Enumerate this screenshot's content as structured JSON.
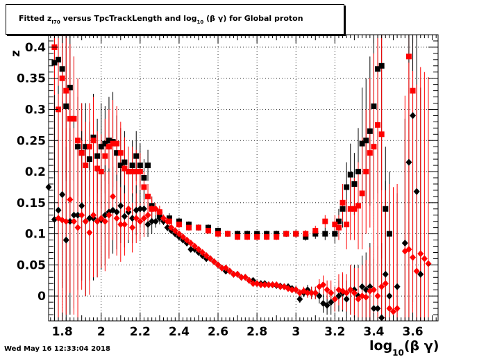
{
  "title": {
    "prefix": "Fitted  z",
    "sub1": "I70",
    "middle": "  versus TpcTrackLength and log",
    "sub2": "10",
    "suffix": " (β γ) for Global proton"
  },
  "datestamp": "Wed May 16 12:33:04 2018",
  "chart_data": {
    "type": "scatter",
    "title": "Fitted z_I70 versus TpcTrackLength and log10(β γ) for Global proton",
    "xlabel": "log10(β γ)",
    "ylabel": "z",
    "xlim": [
      1.73,
      3.73
    ],
    "ylim": [
      -0.04,
      0.42
    ],
    "grid": true,
    "x_ticks": [
      1.8,
      2.0,
      2.2,
      2.4,
      2.6,
      2.8,
      3.0,
      3.2,
      3.4,
      3.6
    ],
    "x_tick_labels": [
      "1.8",
      "2",
      "2.2",
      "2.4",
      "2.6",
      "2.8",
      "3",
      "3.2",
      "3.4",
      "3.6"
    ],
    "y_ticks": [
      0,
      0.05,
      0.1,
      0.15,
      0.2,
      0.25,
      0.3,
      0.35,
      0.4
    ],
    "y_tick_labels": [
      "0",
      "0.05",
      "0.1",
      "0.15",
      "0.2",
      "0.25",
      "0.3",
      "0.35",
      "0.4"
    ],
    "colors": {
      "black": "#000000",
      "red": "#ff0000"
    },
    "series": [
      {
        "marker": "square",
        "color": "#000000",
        "x": [
          1.76,
          1.78,
          1.8,
          1.82,
          1.84,
          1.86,
          1.88,
          1.9,
          1.92,
          1.94,
          1.96,
          1.98,
          2.0,
          2.02,
          2.04,
          2.06,
          2.08,
          2.1,
          2.12,
          2.14,
          2.16,
          2.18,
          2.2,
          2.22,
          2.24,
          2.26,
          2.3,
          2.35,
          2.4,
          2.45,
          2.5,
          2.55,
          2.6,
          2.65,
          2.7,
          2.75,
          2.8,
          2.85,
          2.9,
          2.95,
          3.0,
          3.05,
          3.1,
          3.15,
          3.2,
          3.22,
          3.24,
          3.26,
          3.28,
          3.3,
          3.32,
          3.34,
          3.36,
          3.38,
          3.4,
          3.42,
          3.44,
          3.46,
          3.48
        ],
        "y": [
          0.375,
          0.38,
          0.365,
          0.305,
          0.335,
          0.285,
          0.24,
          0.23,
          0.24,
          0.22,
          0.255,
          0.225,
          0.24,
          0.245,
          0.25,
          0.248,
          0.23,
          0.21,
          0.215,
          0.2,
          0.21,
          0.225,
          0.21,
          0.19,
          0.21,
          0.145,
          0.13,
          0.125,
          0.12,
          0.115,
          0.11,
          0.11,
          0.105,
          0.1,
          0.1,
          0.1,
          0.1,
          0.1,
          0.1,
          0.1,
          0.1,
          0.095,
          0.1,
          0.1,
          0.1,
          0.12,
          0.14,
          0.175,
          0.195,
          0.18,
          0.2,
          0.245,
          0.25,
          0.265,
          0.305,
          0.365,
          0.37,
          0.14,
          0.1
        ],
        "err": [
          0.18,
          0.2,
          0.2,
          0.12,
          0.12,
          0.1,
          0.08,
          0.08,
          0.07,
          0.06,
          0.07,
          0.06,
          0.07,
          0.06,
          0.07,
          0.08,
          0.06,
          0.06,
          0.05,
          0.04,
          0.04,
          0.04,
          0.035,
          0.03,
          0.025,
          0.015,
          0.01,
          0.008,
          0.006,
          0.005,
          0.005,
          0.005,
          0.005,
          0.005,
          0.005,
          0.005,
          0.005,
          0.005,
          0.005,
          0.005,
          0.006,
          0.006,
          0.008,
          0.01,
          0.015,
          0.02,
          0.03,
          0.04,
          0.05,
          0.05,
          0.07,
          0.09,
          0.1,
          0.12,
          0.15,
          0.2,
          0.2,
          0.1,
          0.1
        ]
      },
      {
        "marker": "square",
        "color": "#ff0000",
        "x": [
          1.76,
          1.78,
          1.8,
          1.82,
          1.84,
          1.86,
          1.88,
          1.9,
          1.92,
          1.94,
          1.96,
          1.98,
          2.0,
          2.02,
          2.04,
          2.06,
          2.08,
          2.1,
          2.12,
          2.14,
          2.16,
          2.18,
          2.2,
          2.22,
          2.24,
          2.26,
          2.3,
          2.35,
          2.4,
          2.45,
          2.5,
          2.55,
          2.6,
          2.65,
          2.7,
          2.75,
          2.8,
          2.85,
          2.9,
          2.95,
          3.0,
          3.05,
          3.1,
          3.15,
          3.2,
          3.22,
          3.24,
          3.26,
          3.28,
          3.3,
          3.32,
          3.34,
          3.36,
          3.38,
          3.4,
          3.42,
          3.44,
          3.58,
          3.6
        ],
        "y": [
          0.4,
          0.3,
          0.35,
          0.33,
          0.285,
          0.285,
          0.25,
          0.23,
          0.21,
          0.24,
          0.25,
          0.205,
          0.2,
          0.225,
          0.24,
          0.245,
          0.245,
          0.23,
          0.205,
          0.2,
          0.2,
          0.2,
          0.2,
          0.175,
          0.16,
          0.14,
          0.135,
          0.12,
          0.115,
          0.11,
          0.11,
          0.105,
          0.1,
          0.1,
          0.095,
          0.095,
          0.095,
          0.095,
          0.095,
          0.1,
          0.1,
          0.1,
          0.105,
          0.12,
          0.115,
          0.11,
          0.15,
          0.115,
          0.14,
          0.14,
          0.145,
          0.165,
          0.2,
          0.23,
          0.24,
          0.275,
          0.26,
          0.385,
          0.33
        ],
        "err": [
          0.2,
          0.2,
          0.18,
          0.14,
          0.12,
          0.1,
          0.1,
          0.08,
          0.07,
          0.07,
          0.07,
          0.06,
          0.06,
          0.06,
          0.06,
          0.07,
          0.06,
          0.05,
          0.05,
          0.04,
          0.04,
          0.035,
          0.03,
          0.025,
          0.02,
          0.015,
          0.01,
          0.008,
          0.006,
          0.005,
          0.005,
          0.005,
          0.005,
          0.005,
          0.005,
          0.005,
          0.005,
          0.005,
          0.005,
          0.005,
          0.006,
          0.006,
          0.008,
          0.01,
          0.015,
          0.02,
          0.03,
          0.04,
          0.05,
          0.05,
          0.07,
          0.09,
          0.1,
          0.12,
          0.15,
          0.2,
          0.2,
          0.3,
          0.3
        ]
      },
      {
        "marker": "diamond",
        "color": "#000000",
        "x": [
          1.73,
          1.76,
          1.78,
          1.8,
          1.82,
          1.84,
          1.86,
          1.88,
          1.9,
          1.92,
          1.94,
          1.96,
          1.98,
          2.0,
          2.02,
          2.04,
          2.06,
          2.08,
          2.1,
          2.12,
          2.14,
          2.16,
          2.18,
          2.2,
          2.22,
          2.24,
          2.26,
          2.28,
          2.3,
          2.32,
          2.34,
          2.36,
          2.38,
          2.4,
          2.42,
          2.44,
          2.46,
          2.48,
          2.5,
          2.52,
          2.54,
          2.56,
          2.58,
          2.6,
          2.62,
          2.64,
          2.66,
          2.68,
          2.7,
          2.72,
          2.74,
          2.76,
          2.78,
          2.8,
          2.82,
          2.84,
          2.86,
          2.88,
          2.9,
          2.92,
          2.94,
          2.96,
          2.98,
          3.0,
          3.02,
          3.04,
          3.06,
          3.08,
          3.1,
          3.12,
          3.14,
          3.16,
          3.18,
          3.2,
          3.22,
          3.24,
          3.26,
          3.28,
          3.3,
          3.32,
          3.34,
          3.36,
          3.38,
          3.4,
          3.42,
          3.44,
          3.46,
          3.48,
          3.52,
          3.56,
          3.58,
          3.6,
          3.62,
          3.64
        ],
        "y": [
          0.175,
          0.123,
          0.138,
          0.163,
          0.09,
          0.12,
          0.13,
          0.13,
          0.145,
          0.12,
          0.125,
          0.125,
          0.12,
          0.122,
          0.13,
          0.135,
          0.138,
          0.135,
          0.145,
          0.128,
          0.135,
          0.125,
          0.138,
          0.14,
          0.14,
          0.115,
          0.12,
          0.12,
          0.125,
          0.12,
          0.11,
          0.105,
          0.1,
          0.095,
          0.09,
          0.085,
          0.075,
          0.075,
          0.07,
          0.065,
          0.06,
          0.06,
          0.055,
          0.05,
          0.045,
          0.04,
          0.04,
          0.035,
          0.035,
          0.03,
          0.03,
          0.025,
          0.025,
          0.02,
          0.02,
          0.02,
          0.018,
          0.018,
          0.017,
          0.016,
          0.015,
          0.015,
          0.012,
          0.01,
          -0.005,
          0.005,
          0.01,
          0.005,
          0.005,
          0.0,
          -0.012,
          -0.015,
          -0.01,
          -0.005,
          0.0,
          0.005,
          -0.005,
          0.01,
          0.01,
          0.0,
          0.015,
          0.01,
          0.015,
          -0.02,
          -0.02,
          -0.035,
          0.035,
          0.0,
          0.015,
          0.085,
          0.215,
          0.29,
          0.168,
          0.035
        ],
        "err": [
          0.2,
          0.2,
          0.2,
          0.15,
          0.15,
          0.15,
          0.15,
          0.12,
          0.12,
          0.12,
          0.1,
          0.1,
          0.09,
          0.08,
          0.08,
          0.07,
          0.07,
          0.06,
          0.06,
          0.05,
          0.05,
          0.04,
          0.04,
          0.03,
          0.03,
          0.02,
          0.02,
          0.01,
          0.01,
          0.006,
          0.006,
          0.005,
          0.005,
          0.004,
          0.004,
          0.004,
          0.004,
          0.004,
          0.004,
          0.004,
          0.004,
          0.004,
          0.004,
          0.004,
          0.004,
          0.004,
          0.004,
          0.004,
          0.004,
          0.004,
          0.004,
          0.004,
          0.004,
          0.004,
          0.004,
          0.004,
          0.004,
          0.004,
          0.004,
          0.004,
          0.005,
          0.005,
          0.005,
          0.006,
          0.006,
          0.007,
          0.008,
          0.01,
          0.01,
          0.012,
          0.015,
          0.015,
          0.02,
          0.02,
          0.025,
          0.03,
          0.03,
          0.04,
          0.04,
          0.05,
          0.05,
          0.06,
          0.07,
          0.08,
          0.1,
          0.12,
          0.15,
          0.15,
          0.15,
          0.2,
          0.25,
          0.3,
          0.3,
          0.3
        ]
      },
      {
        "marker": "diamond",
        "color": "#ff0000",
        "x": [
          1.78,
          1.8,
          1.82,
          1.84,
          1.86,
          1.88,
          1.9,
          1.92,
          1.94,
          1.96,
          1.98,
          2.0,
          2.02,
          2.04,
          2.06,
          2.08,
          2.1,
          2.12,
          2.14,
          2.16,
          2.18,
          2.2,
          2.22,
          2.24,
          2.26,
          2.28,
          2.3,
          2.32,
          2.34,
          2.36,
          2.38,
          2.4,
          2.42,
          2.44,
          2.46,
          2.48,
          2.5,
          2.52,
          2.54,
          2.56,
          2.58,
          2.6,
          2.62,
          2.64,
          2.66,
          2.68,
          2.7,
          2.72,
          2.74,
          2.76,
          2.78,
          2.8,
          2.82,
          2.84,
          2.86,
          2.88,
          2.9,
          2.92,
          2.94,
          2.96,
          2.98,
          3.0,
          3.02,
          3.04,
          3.06,
          3.08,
          3.1,
          3.12,
          3.14,
          3.16,
          3.18,
          3.2,
          3.22,
          3.24,
          3.26,
          3.28,
          3.3,
          3.32,
          3.34,
          3.36,
          3.38,
          3.4,
          3.42,
          3.44,
          3.46,
          3.48,
          3.5,
          3.52,
          3.56,
          3.58,
          3.6,
          3.62,
          3.64,
          3.66,
          3.68
        ],
        "y": [
          0.125,
          0.122,
          0.12,
          0.155,
          0.12,
          0.11,
          0.13,
          0.12,
          0.102,
          0.13,
          0.12,
          0.125,
          0.12,
          0.13,
          0.16,
          0.125,
          0.115,
          0.115,
          0.14,
          0.11,
          0.125,
          0.12,
          0.125,
          0.13,
          0.14,
          0.14,
          0.135,
          0.125,
          0.12,
          0.11,
          0.105,
          0.1,
          0.095,
          0.09,
          0.085,
          0.08,
          0.075,
          0.07,
          0.065,
          0.06,
          0.055,
          0.05,
          0.045,
          0.045,
          0.04,
          0.035,
          0.035,
          0.03,
          0.03,
          0.025,
          0.02,
          0.02,
          0.018,
          0.018,
          0.018,
          0.018,
          0.018,
          0.015,
          0.015,
          0.012,
          0.01,
          0.01,
          0.005,
          0.008,
          0.005,
          0.005,
          0.005,
          0.015,
          0.018,
          0.01,
          0.005,
          -0.005,
          0.01,
          0.008,
          0.005,
          0.01,
          0.005,
          -0.005,
          0.0,
          -0.002,
          0.008,
          0.01,
          0.0,
          0.015,
          0.02,
          -0.02,
          -0.025,
          -0.02,
          0.072,
          0.075,
          0.062,
          0.04,
          0.068,
          0.06,
          0.052
        ],
        "err": [
          0.2,
          0.2,
          0.15,
          0.15,
          0.15,
          0.15,
          0.12,
          0.12,
          0.1,
          0.1,
          0.09,
          0.08,
          0.08,
          0.07,
          0.07,
          0.06,
          0.06,
          0.05,
          0.05,
          0.04,
          0.04,
          0.03,
          0.03,
          0.02,
          0.02,
          0.01,
          0.01,
          0.006,
          0.006,
          0.005,
          0.005,
          0.004,
          0.004,
          0.004,
          0.004,
          0.004,
          0.004,
          0.004,
          0.004,
          0.004,
          0.004,
          0.004,
          0.004,
          0.004,
          0.004,
          0.004,
          0.004,
          0.004,
          0.004,
          0.004,
          0.004,
          0.004,
          0.004,
          0.004,
          0.004,
          0.004,
          0.004,
          0.004,
          0.005,
          0.005,
          0.005,
          0.006,
          0.006,
          0.007,
          0.008,
          0.01,
          0.01,
          0.012,
          0.015,
          0.015,
          0.02,
          0.02,
          0.025,
          0.03,
          0.03,
          0.04,
          0.04,
          0.05,
          0.05,
          0.06,
          0.07,
          0.08,
          0.1,
          0.12,
          0.15,
          0.2,
          0.2,
          0.2,
          0.25,
          0.3,
          0.3,
          0.3,
          0.3,
          0.3,
          0.3
        ]
      }
    ]
  }
}
